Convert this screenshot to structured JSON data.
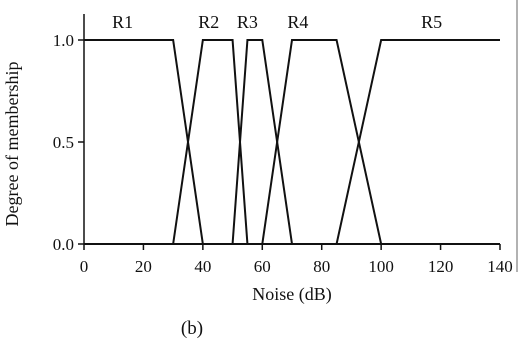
{
  "chart_data": {
    "type": "line",
    "title": "",
    "xlabel": "Noise (dB)",
    "ylabel": "Degree of membership",
    "xlim": [
      0,
      140
    ],
    "ylim": [
      0,
      1
    ],
    "x_ticks": [
      "0",
      "20",
      "40",
      "60",
      "80",
      "100",
      "120",
      "140"
    ],
    "y_ticks": [
      "0.0",
      "0.5",
      "1.0"
    ],
    "grid": false,
    "legend": "none",
    "caption": "(b)",
    "series": [
      {
        "label": "R1",
        "label_x": 13,
        "points": [
          [
            0,
            1
          ],
          [
            30,
            1
          ],
          [
            40,
            0
          ],
          [
            140,
            0
          ]
        ]
      },
      {
        "label": "R2",
        "label_x": 42,
        "points": [
          [
            0,
            0
          ],
          [
            30,
            0
          ],
          [
            40,
            1
          ],
          [
            50,
            1
          ],
          [
            55,
            0
          ],
          [
            140,
            0
          ]
        ]
      },
      {
        "label": "R3",
        "label_x": 55,
        "points": [
          [
            0,
            0
          ],
          [
            50,
            0
          ],
          [
            55,
            1
          ],
          [
            60,
            1
          ],
          [
            70,
            0
          ],
          [
            140,
            0
          ]
        ]
      },
      {
        "label": "R4",
        "label_x": 72,
        "points": [
          [
            0,
            0
          ],
          [
            60,
            0
          ],
          [
            70,
            1
          ],
          [
            85,
            1
          ],
          [
            100,
            0
          ],
          [
            140,
            0
          ]
        ]
      },
      {
        "label": "R5",
        "label_x": 117,
        "points": [
          [
            0,
            0
          ],
          [
            85,
            0
          ],
          [
            100,
            1
          ],
          [
            140,
            1
          ]
        ]
      }
    ]
  }
}
